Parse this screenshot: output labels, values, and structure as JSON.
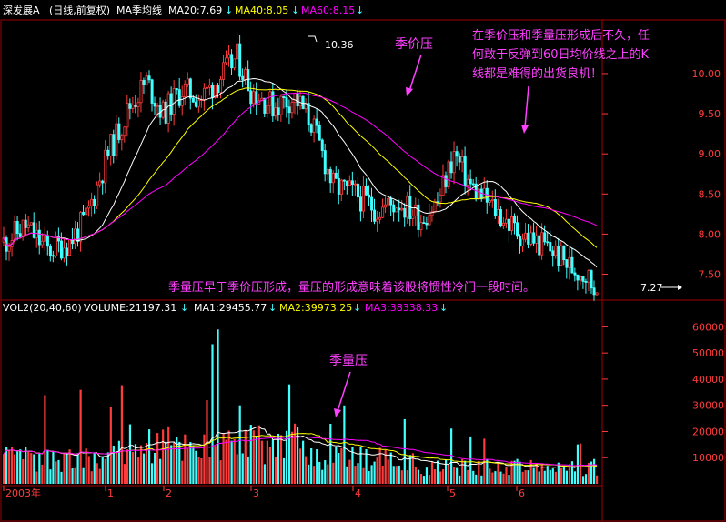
{
  "header": {
    "stock": "深发展A",
    "mode": "(日线,前复权)",
    "ma_title": "MA季均线",
    "ma20": "MA20:7.69",
    "ma40": "MA40:8.05",
    "ma60": "MA60:8.15",
    "arrow": "↓"
  },
  "vol_header": {
    "title": "VOL2(20,40,60)",
    "volume": "VOLUME:21197.31",
    "ma1": "MA1:29455.77",
    "ma2": "MA2:39973.25",
    "ma3": "MA3:38338.33"
  },
  "annotations": {
    "price_pressure": "季价压",
    "volume_pressure": "季量压",
    "note_line1": "在季价压和季量压形成后不久，任",
    "note_line2": "何敢于反弹到60日均价线之上的K",
    "note_line3": "线都是难得的出货良机！",
    "bottom_note": "季量压早于季价压形成，量压的形成意味着该股将惯性冷门一段时间。",
    "high_label": "10.36",
    "last_label": "7.27"
  },
  "x_axis": {
    "labels": [
      "2003年",
      "1",
      "2",
      "3",
      "4",
      "5",
      "6"
    ]
  },
  "colors": {
    "up": "#ff3c3c",
    "down": "#40ffff",
    "ma20": "#ffffff",
    "ma40": "#ffff00",
    "ma60": "#ff00ff",
    "grid": "#a00000",
    "annotation": "#ff40ff",
    "axis_text": "#ff3c3c"
  },
  "chart_data": [
    {
      "type": "candlestick",
      "title": "深发展A (日线,前复权)",
      "y_ticks": [
        10.0,
        9.5,
        9.0,
        8.5,
        8.0,
        7.5
      ],
      "ylim": [
        7.2,
        10.6
      ],
      "x_months": [
        "2003-01",
        "2003-02",
        "2003-03",
        "2003-04",
        "2003-05",
        "2003-06"
      ],
      "series": [
        {
          "name": "MA20",
          "last": 7.69
        },
        {
          "name": "MA40",
          "last": 8.05
        },
        {
          "name": "MA60",
          "last": 8.15
        }
      ],
      "high": 10.36,
      "last_close": 7.27
    },
    {
      "type": "bar",
      "title": "VOL2(20,40,60)",
      "y_ticks": [
        60000,
        50000,
        40000,
        30000,
        20000,
        10000
      ],
      "ylim": [
        0,
        65000
      ],
      "series": [
        {
          "name": "VOLUME",
          "last": 21197.31
        },
        {
          "name": "MA1",
          "last": 29455.77
        },
        {
          "name": "MA2",
          "last": 39973.25
        },
        {
          "name": "MA3",
          "last": 38338.33
        }
      ]
    }
  ]
}
